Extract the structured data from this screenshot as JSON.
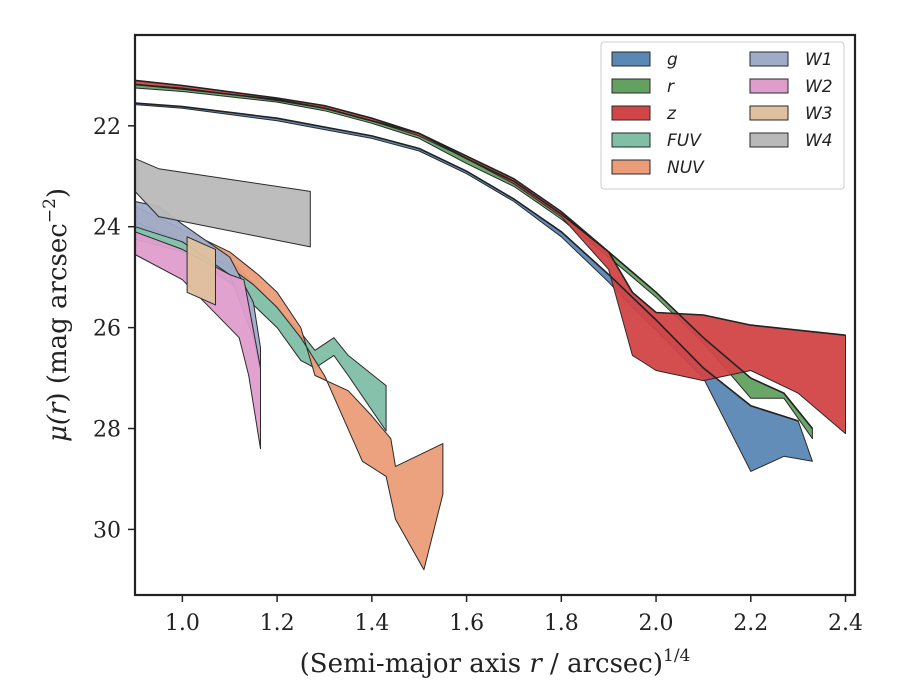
{
  "chart_data": {
    "type": "area",
    "xlabel_parts": [
      "(Semi-major axis ",
      "r",
      " / arcsec)",
      "1/4"
    ],
    "ylabel_parts": [
      "μ(",
      "r",
      ") (mag arcsec",
      "−2",
      ")"
    ],
    "xlim": [
      0.9,
      2.42
    ],
    "ylim": [
      31.3,
      20.2
    ],
    "y_inverted": true,
    "xticks": [
      1.0,
      1.2,
      1.4,
      1.6,
      1.8,
      2.0,
      2.2,
      2.4
    ],
    "xtick_labels": [
      "1.0",
      "1.2",
      "1.4",
      "1.6",
      "1.8",
      "2.0",
      "2.2",
      "2.4"
    ],
    "yticks": [
      22,
      24,
      26,
      28,
      30
    ],
    "ytick_labels": [
      "22",
      "24",
      "26",
      "28",
      "30"
    ],
    "legend_position": "top-right",
    "legend_columns": 2,
    "series": [
      {
        "name": "g",
        "color": "#5b87b5",
        "upper": [
          [
            0.9,
            21.55
          ],
          [
            1.0,
            21.62
          ],
          [
            1.2,
            21.85
          ],
          [
            1.4,
            22.2
          ],
          [
            1.5,
            22.45
          ],
          [
            1.6,
            22.9
          ],
          [
            1.7,
            23.45
          ],
          [
            1.8,
            24.1
          ],
          [
            1.9,
            24.95
          ],
          [
            1.95,
            25.4
          ],
          [
            2.0,
            25.85
          ],
          [
            2.1,
            26.8
          ],
          [
            2.2,
            27.55
          ],
          [
            2.3,
            27.85
          ]
        ],
        "lower": [
          [
            2.33,
            28.65
          ],
          [
            2.27,
            28.55
          ],
          [
            2.2,
            28.85
          ],
          [
            2.1,
            27.0
          ],
          [
            2.0,
            26.05
          ],
          [
            1.95,
            25.6
          ],
          [
            1.9,
            25.1
          ],
          [
            1.8,
            24.2
          ],
          [
            1.7,
            23.5
          ],
          [
            1.6,
            22.95
          ],
          [
            1.5,
            22.5
          ],
          [
            1.4,
            22.25
          ],
          [
            1.2,
            21.9
          ],
          [
            1.0,
            21.65
          ],
          [
            0.9,
            21.58
          ]
        ]
      },
      {
        "name": "r",
        "color": "#63a161",
        "upper": [
          [
            0.9,
            21.18
          ],
          [
            1.0,
            21.27
          ],
          [
            1.2,
            21.48
          ],
          [
            1.3,
            21.65
          ],
          [
            1.4,
            21.9
          ],
          [
            1.5,
            22.15
          ],
          [
            1.6,
            22.65
          ],
          [
            1.7,
            23.1
          ],
          [
            1.8,
            23.75
          ],
          [
            1.9,
            24.5
          ],
          [
            2.0,
            25.3
          ],
          [
            2.1,
            26.2
          ],
          [
            2.2,
            27.0
          ],
          [
            2.27,
            27.3
          ],
          [
            2.33,
            28.0
          ]
        ],
        "lower": [
          [
            2.33,
            28.2
          ],
          [
            2.27,
            27.4
          ],
          [
            2.2,
            27.4
          ],
          [
            2.1,
            26.3
          ],
          [
            2.0,
            25.4
          ],
          [
            1.9,
            24.6
          ],
          [
            1.8,
            23.85
          ],
          [
            1.7,
            23.2
          ],
          [
            1.6,
            22.75
          ],
          [
            1.5,
            22.25
          ],
          [
            1.4,
            21.95
          ],
          [
            1.3,
            21.7
          ],
          [
            1.2,
            21.53
          ],
          [
            1.0,
            21.32
          ],
          [
            0.9,
            21.25
          ]
        ]
      },
      {
        "name": "z",
        "color": "#d24546",
        "upper": [
          [
            0.9,
            21.1
          ],
          [
            1.0,
            21.2
          ],
          [
            1.2,
            21.45
          ],
          [
            1.3,
            21.6
          ],
          [
            1.4,
            21.85
          ],
          [
            1.5,
            22.15
          ],
          [
            1.6,
            22.6
          ],
          [
            1.7,
            23.05
          ],
          [
            1.8,
            23.7
          ],
          [
            1.9,
            24.5
          ],
          [
            1.95,
            25.3
          ],
          [
            2.0,
            25.7
          ],
          [
            2.1,
            25.75
          ],
          [
            2.2,
            25.95
          ],
          [
            2.4,
            26.15
          ]
        ],
        "lower": [
          [
            2.4,
            28.1
          ],
          [
            2.3,
            27.3
          ],
          [
            2.2,
            26.85
          ],
          [
            2.1,
            27.05
          ],
          [
            2.0,
            26.85
          ],
          [
            1.95,
            26.55
          ],
          [
            1.9,
            24.85
          ],
          [
            1.8,
            23.8
          ],
          [
            1.7,
            23.15
          ],
          [
            1.6,
            22.65
          ],
          [
            1.5,
            22.2
          ],
          [
            1.4,
            21.9
          ],
          [
            1.3,
            21.65
          ],
          [
            1.2,
            21.5
          ],
          [
            1.0,
            21.25
          ],
          [
            0.9,
            21.18
          ]
        ]
      },
      {
        "name": "FUV",
        "color": "#80bea6",
        "upper": [
          [
            0.9,
            23.95
          ],
          [
            1.0,
            24.2
          ],
          [
            1.1,
            24.65
          ],
          [
            1.2,
            25.6
          ],
          [
            1.25,
            26.1
          ],
          [
            1.28,
            26.45
          ],
          [
            1.32,
            26.2
          ],
          [
            1.35,
            26.55
          ],
          [
            1.43,
            27.15
          ]
        ],
        "lower": [
          [
            1.43,
            28.05
          ],
          [
            1.35,
            26.95
          ],
          [
            1.32,
            26.55
          ],
          [
            1.28,
            26.8
          ],
          [
            1.25,
            26.65
          ],
          [
            1.2,
            26.0
          ],
          [
            1.1,
            25.1
          ],
          [
            1.0,
            24.5
          ],
          [
            0.9,
            24.25
          ]
        ]
      },
      {
        "name": "NUV",
        "color": "#eb9c78",
        "upper": [
          [
            0.9,
            23.6
          ],
          [
            1.0,
            24.05
          ],
          [
            1.1,
            24.5
          ],
          [
            1.16,
            24.95
          ],
          [
            1.2,
            25.3
          ],
          [
            1.25,
            26.0
          ],
          [
            1.28,
            26.95
          ],
          [
            1.35,
            27.25
          ],
          [
            1.4,
            27.75
          ],
          [
            1.44,
            28.2
          ],
          [
            1.45,
            28.75
          ],
          [
            1.55,
            28.3
          ]
        ],
        "lower": [
          [
            1.55,
            29.3
          ],
          [
            1.51,
            30.8
          ],
          [
            1.45,
            29.8
          ],
          [
            1.43,
            28.95
          ],
          [
            1.38,
            28.65
          ],
          [
            1.3,
            26.95
          ],
          [
            1.25,
            26.2
          ],
          [
            1.2,
            25.6
          ],
          [
            1.15,
            25.15
          ],
          [
            1.1,
            24.8
          ],
          [
            1.0,
            24.3
          ],
          [
            0.9,
            23.9
          ]
        ]
      },
      {
        "name": "W1",
        "color": "#9facc9",
        "upper": [
          [
            0.9,
            23.5
          ],
          [
            0.95,
            23.6
          ],
          [
            1.0,
            23.95
          ],
          [
            1.1,
            24.6
          ],
          [
            1.15,
            25.5
          ],
          [
            1.165,
            26.4
          ]
        ],
        "lower": [
          [
            1.165,
            26.9
          ],
          [
            1.15,
            26.2
          ],
          [
            1.1,
            24.95
          ],
          [
            1.0,
            24.3
          ],
          [
            0.9,
            24.0
          ]
        ]
      },
      {
        "name": "W2",
        "color": "#df9dcc",
        "upper": [
          [
            0.9,
            24.1
          ],
          [
            1.0,
            24.45
          ],
          [
            1.1,
            24.95
          ],
          [
            1.13,
            25.05
          ],
          [
            1.165,
            26.8
          ]
        ],
        "lower": [
          [
            1.165,
            28.4
          ],
          [
            1.14,
            26.95
          ],
          [
            1.12,
            26.2
          ],
          [
            1.0,
            25.05
          ],
          [
            0.9,
            24.55
          ]
        ]
      },
      {
        "name": "W3",
        "color": "#dfc19e",
        "upper": [
          [
            1.01,
            24.2
          ],
          [
            1.07,
            24.45
          ]
        ],
        "lower": [
          [
            1.07,
            25.55
          ],
          [
            1.01,
            25.3
          ]
        ]
      },
      {
        "name": "W4",
        "color": "#b9b9b9",
        "upper": [
          [
            0.9,
            22.65
          ],
          [
            0.95,
            22.85
          ],
          [
            1.27,
            23.3
          ]
        ],
        "lower": [
          [
            1.27,
            24.4
          ],
          [
            0.95,
            23.8
          ],
          [
            0.9,
            23.3
          ]
        ]
      }
    ]
  }
}
